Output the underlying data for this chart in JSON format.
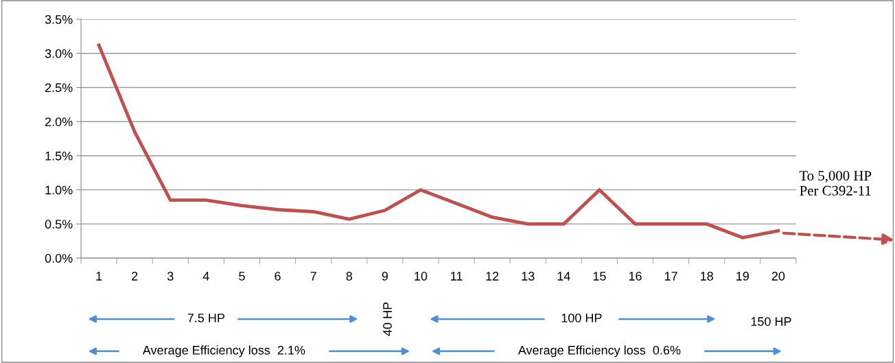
{
  "chart_data": {
    "type": "line",
    "categories": [
      "1",
      "2",
      "3",
      "4",
      "5",
      "6",
      "7",
      "8",
      "9",
      "10",
      "11",
      "12",
      "13",
      "14",
      "15",
      "16",
      "17",
      "18",
      "19",
      "20"
    ],
    "series": [
      {
        "color": "#c0504d",
        "values": [
          3.12,
          1.85,
          0.85,
          0.85,
          0.77,
          0.71,
          0.68,
          0.57,
          0.7,
          1.0,
          0.8,
          0.6,
          0.5,
          0.5,
          1.0,
          0.5,
          0.5,
          0.5,
          0.3,
          0.4
        ]
      }
    ],
    "ylim": [
      0,
      3.5
    ],
    "yticks": [
      {
        "value": 0,
        "label": "0.0%"
      },
      {
        "value": 0.5,
        "label": "0.5%"
      },
      {
        "value": 1.0,
        "label": "1.0%"
      },
      {
        "value": 1.5,
        "label": "1.5%"
      },
      {
        "value": 2.0,
        "label": "2.0%"
      },
      {
        "value": 2.5,
        "label": "2.5%"
      },
      {
        "value": 3.0,
        "label": "3.0%"
      },
      {
        "value": 3.5,
        "label": "3.5%"
      }
    ],
    "grid": "y",
    "marker": "none",
    "line_style": "solid",
    "legend": false,
    "annotations": [
      "To 5,000 HP\nPer C392-11",
      "7.5 HP",
      "40 HP",
      "100 HP",
      "150 HP",
      "Average Efficiency loss  2.1%",
      "Average Efficiency loss  0.6%"
    ]
  }
}
